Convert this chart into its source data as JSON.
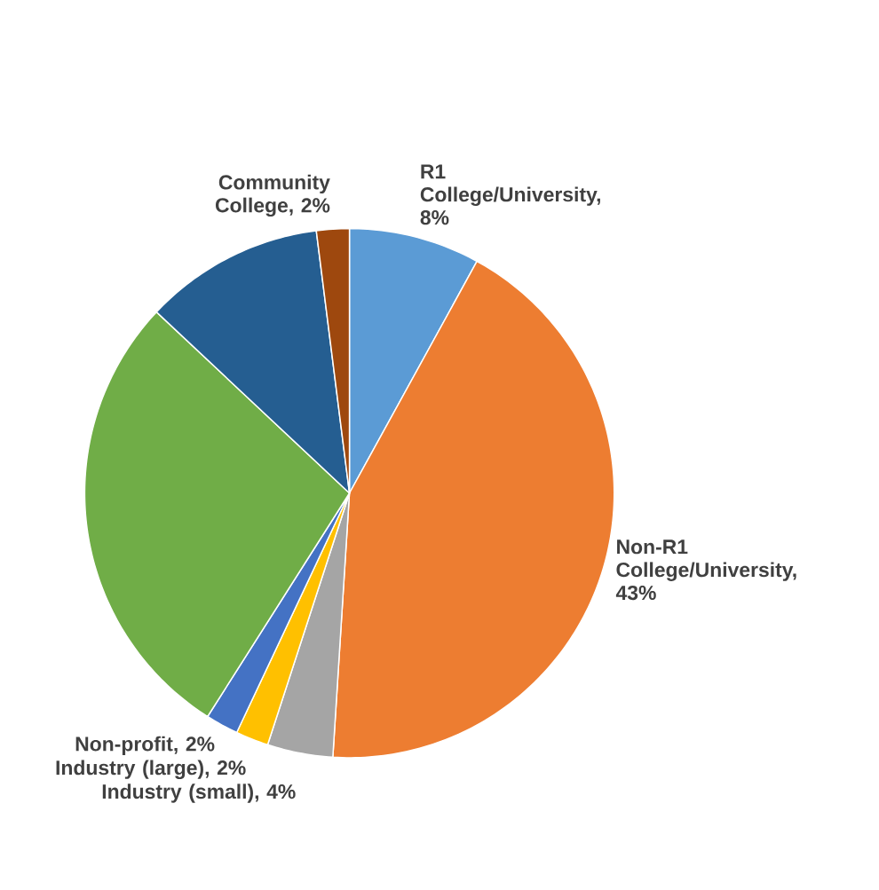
{
  "chart_data": {
    "type": "pie",
    "categories": [
      "R1 College/University, 8%",
      "Non-R1 College/University, 43%",
      "Industry (small), 4%",
      "Industry (large), 2%",
      "Non-profit, 2%",
      null,
      null,
      "Community College, 2%"
    ],
    "values": [
      8,
      43,
      4,
      2,
      2,
      28,
      11,
      2
    ],
    "colors": [
      "#5b9bd5",
      "#ed7d31",
      "#a5a5a5",
      "#ffc000",
      "#4472c4",
      "#70ad47",
      "#255e91",
      "#9e480e"
    ]
  }
}
